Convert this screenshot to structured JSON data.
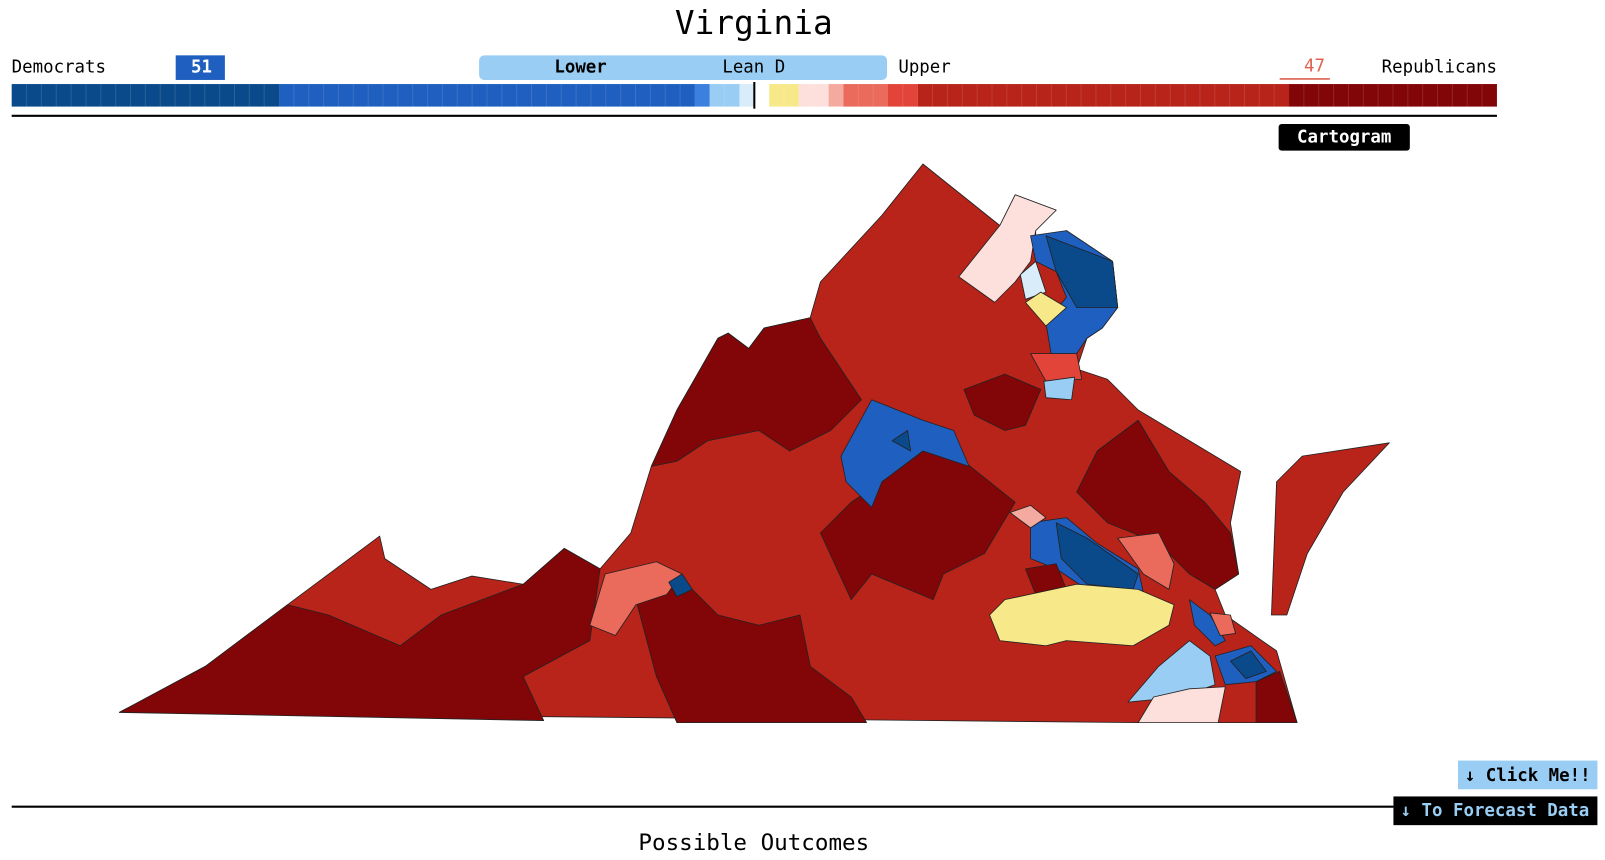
{
  "header": {
    "title": "Virginia",
    "left_party": "Democrats",
    "left_seats": 51,
    "right_party": "Republicans",
    "right_seats": 47
  },
  "chamber_toggle": {
    "lower": "Lower",
    "rating": "Lean D",
    "upper": "Upper"
  },
  "seat_bar": [
    {
      "color": "#0b4a8a",
      "seats": 18
    },
    {
      "color": "#1f5fbf",
      "seats": 28
    },
    {
      "color": "#3a80dc",
      "seats": 1
    },
    {
      "color": "#99cdf3",
      "seats": 2
    },
    {
      "color": "#d9ecf9",
      "seats": 1
    },
    {
      "color": "#ffffff",
      "seats": 1
    },
    {
      "color": "#f7e98a",
      "seats": 2
    },
    {
      "color": "#fde0dc",
      "seats": 2
    },
    {
      "color": "#f5aaa0",
      "seats": 1
    },
    {
      "color": "#ea6a5c",
      "seats": 3
    },
    {
      "color": "#e2443a",
      "seats": 2
    },
    {
      "color": "#b8231a",
      "seats": 25
    },
    {
      "color": "#820608",
      "seats": 14
    }
  ],
  "buttons": {
    "cartogram": "Cartogram",
    "click_me": "↓ Click Me!!",
    "forecast": "↓ To Forecast Data"
  },
  "section": {
    "title": "Possible Outcomes"
  }
}
